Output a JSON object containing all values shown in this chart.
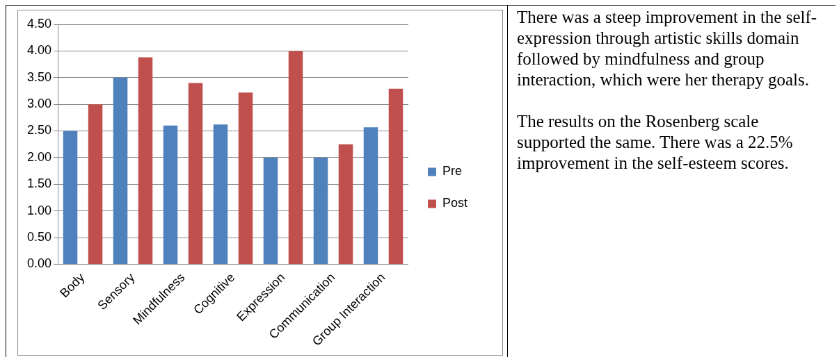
{
  "chart_data": {
    "type": "bar",
    "categories": [
      "Body",
      "Sensory",
      "Mindfulness",
      "Cognitive",
      "Expression",
      "Communication",
      "Group Interaction"
    ],
    "series": [
      {
        "name": "Pre",
        "color": "#4f81bd",
        "values": [
          2.5,
          3.5,
          2.6,
          2.62,
          2.0,
          2.0,
          2.57
        ]
      },
      {
        "name": "Post",
        "color": "#c0504d",
        "values": [
          3.0,
          3.88,
          3.4,
          3.22,
          4.0,
          2.25,
          3.29
        ]
      }
    ],
    "ylim": [
      0,
      4.5
    ],
    "yticks": [
      {
        "value": 0,
        "label": "0.00"
      },
      {
        "value": 0.5,
        "label": "0.50"
      },
      {
        "value": 1,
        "label": "1.00"
      },
      {
        "value": 1.5,
        "label": "1.50"
      },
      {
        "value": 2,
        "label": "2.00"
      },
      {
        "value": 2.5,
        "label": "2.50"
      },
      {
        "value": 3,
        "label": "3.00"
      },
      {
        "value": 3.5,
        "label": "3.50"
      },
      {
        "value": 4,
        "label": "4.00"
      },
      {
        "value": 4.5,
        "label": "4.50"
      }
    ],
    "grid": "y",
    "legend": "right",
    "annotations": [
      "There was a steep improvement in the self-expression through artistic skills domain followed by mindfulness and group interaction, which were her therapy goals.",
      "The results on the Rosenberg scale supported the same. There was a 22.5% improvement in the self-esteem scores."
    ]
  }
}
